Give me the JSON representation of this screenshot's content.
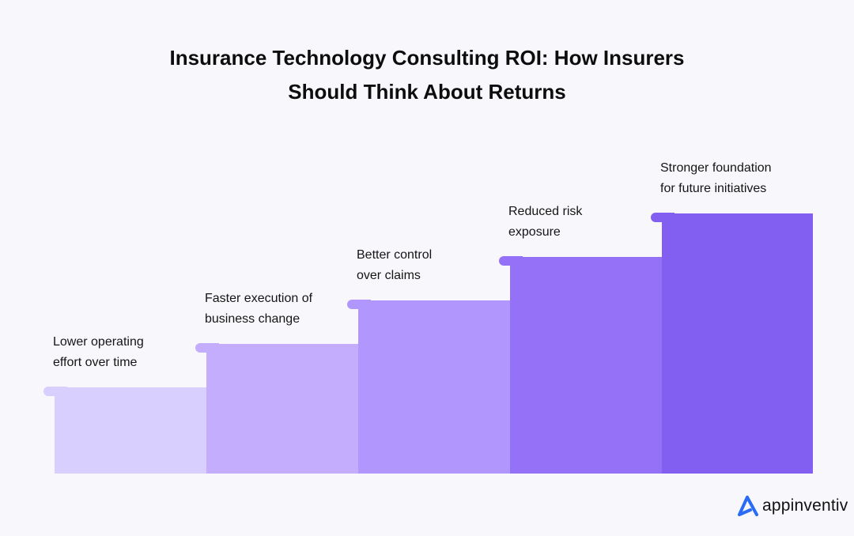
{
  "title": "Insurance Technology Consulting ROI: How Insurers Should Think About Returns",
  "steps": [
    {
      "line1": "Lower operating",
      "line2": "effort over time",
      "color": "#d9cffe"
    },
    {
      "line1": "Faster execution of",
      "line2": "business change",
      "color": "#c3adfc"
    },
    {
      "line1": "Better control",
      "line2": "over claims",
      "color": "#b196fd"
    },
    {
      "line1": "Reduced risk",
      "line2": "exposure",
      "color": "#9471f6"
    },
    {
      "line1": "Stronger foundation",
      "line2": "for future initiatives",
      "color": "#835ff1"
    }
  ],
  "logo": {
    "text": "appinventiv",
    "color": "#2a6cf6"
  }
}
